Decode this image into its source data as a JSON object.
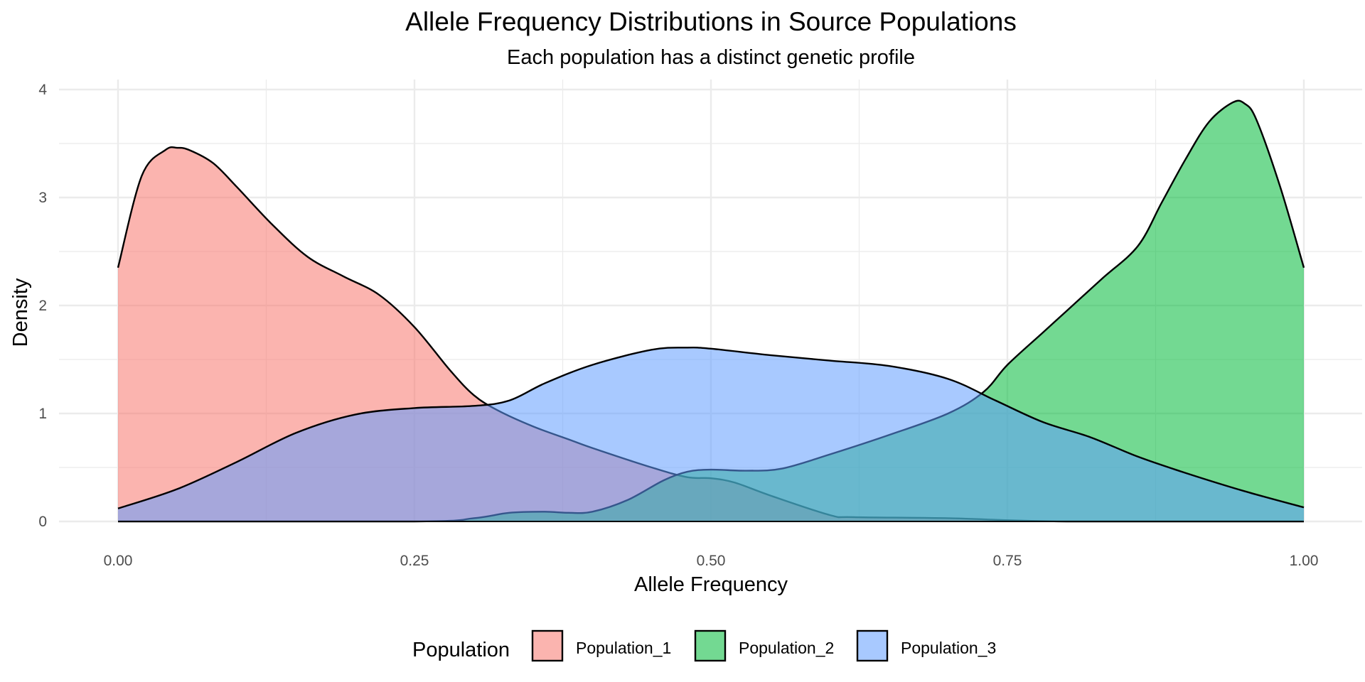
{
  "chart_data": {
    "type": "area",
    "title": "Allele Frequency Distributions in Source Populations",
    "subtitle": "Each population has a distinct genetic profile",
    "xlabel": "Allele Frequency",
    "ylabel": "Density",
    "xlim": [
      0,
      1
    ],
    "ylim": [
      0,
      4
    ],
    "x_ticks": [
      0,
      0.25,
      0.5,
      0.75,
      1
    ],
    "x_tick_labels": [
      "0.00",
      "0.25",
      "0.50",
      "0.75",
      "1.00"
    ],
    "y_ticks": [
      0,
      1,
      2,
      3,
      4
    ],
    "y_tick_labels": [
      "0",
      "1",
      "2",
      "3",
      "4"
    ],
    "grid": true,
    "legend_position": "bottom",
    "legend_title": "Population",
    "series": [
      {
        "name": "Population_1",
        "color": "#F8766D",
        "x": [
          0,
          0.02,
          0.04,
          0.05,
          0.06,
          0.08,
          0.1,
          0.13,
          0.16,
          0.19,
          0.22,
          0.25,
          0.28,
          0.3,
          0.32,
          0.35,
          0.38,
          0.4,
          0.45,
          0.48,
          0.5,
          0.52,
          0.55,
          0.6,
          0.62,
          0.7,
          0.8,
          1
        ],
        "values": [
          2.35,
          3.2,
          3.44,
          3.46,
          3.44,
          3.32,
          3.1,
          2.75,
          2.45,
          2.27,
          2.1,
          1.8,
          1.4,
          1.17,
          1.03,
          0.88,
          0.76,
          0.68,
          0.5,
          0.41,
          0.4,
          0.36,
          0.24,
          0.06,
          0.04,
          0.03,
          0,
          0
        ]
      },
      {
        "name": "Population_2",
        "color": "#00BA38",
        "x": [
          0,
          0.25,
          0.3,
          0.33,
          0.36,
          0.38,
          0.4,
          0.43,
          0.46,
          0.48,
          0.5,
          0.53,
          0.56,
          0.6,
          0.65,
          0.7,
          0.73,
          0.75,
          0.78,
          0.8,
          0.83,
          0.86,
          0.88,
          0.9,
          0.92,
          0.94,
          0.95,
          0.96,
          0.98,
          1
        ],
        "values": [
          0,
          0,
          0.03,
          0.08,
          0.09,
          0.08,
          0.09,
          0.2,
          0.38,
          0.46,
          0.48,
          0.47,
          0.49,
          0.62,
          0.8,
          1.0,
          1.2,
          1.45,
          1.75,
          1.95,
          2.25,
          2.55,
          2.95,
          3.35,
          3.7,
          3.88,
          3.87,
          3.72,
          3.1,
          2.35
        ]
      },
      {
        "name": "Population_3",
        "color": "#619CFF",
        "x": [
          0,
          0.05,
          0.1,
          0.15,
          0.2,
          0.25,
          0.3,
          0.33,
          0.36,
          0.4,
          0.45,
          0.48,
          0.5,
          0.55,
          0.6,
          0.65,
          0.7,
          0.74,
          0.78,
          0.82,
          0.86,
          0.9,
          0.95,
          1
        ],
        "values": [
          0.12,
          0.3,
          0.55,
          0.82,
          0.99,
          1.05,
          1.07,
          1.12,
          1.28,
          1.45,
          1.59,
          1.61,
          1.6,
          1.54,
          1.49,
          1.44,
          1.32,
          1.12,
          0.92,
          0.78,
          0.6,
          0.45,
          0.28,
          0.13
        ]
      }
    ]
  }
}
